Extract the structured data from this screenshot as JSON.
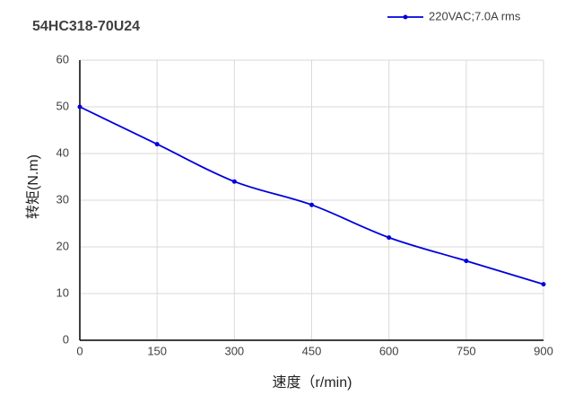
{
  "chart_data": {
    "type": "line",
    "title": "54HC318-70U24",
    "x_label": "速度（r/min)",
    "y_label": "转矩(N.m)",
    "x": [
      0,
      150,
      300,
      450,
      600,
      750,
      900
    ],
    "series": [
      {
        "name": "220VAC;7.0A rms",
        "color": "#0000dd",
        "values": [
          50,
          42,
          34,
          29,
          22,
          17,
          12
        ]
      }
    ],
    "xlim": [
      0,
      900
    ],
    "xticks": [
      0,
      150,
      300,
      450,
      600,
      750,
      900
    ],
    "ylim": [
      0,
      60
    ],
    "yticks": [
      0,
      10,
      20,
      30,
      40,
      50,
      60
    ],
    "grid": true,
    "smooth": true,
    "legend": "top-right"
  }
}
